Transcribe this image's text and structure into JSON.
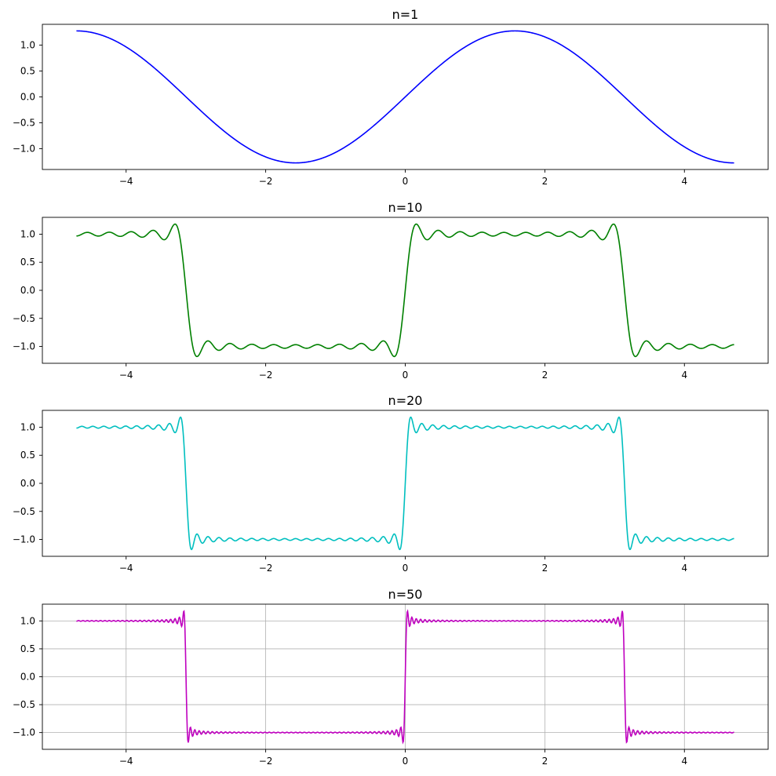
{
  "chart_data": [
    {
      "type": "line",
      "title": "n=1",
      "n_terms": 1,
      "xlim": [
        -5.2,
        5.2
      ],
      "ylim": [
        -1.4,
        1.4
      ],
      "x_ticks": [
        -4,
        -2,
        0,
        2,
        4
      ],
      "x_tick_labels": [
        "−4",
        "−2",
        "0",
        "2",
        "4"
      ],
      "y_ticks": [
        1.0,
        0.5,
        0.0,
        -0.5,
        -1.0
      ],
      "y_tick_labels": [
        "1.0",
        "0.5",
        "0.0",
        "−0.5",
        "−1.0"
      ],
      "x_range": [
        -4.712,
        4.712
      ],
      "color": "#0000ff",
      "grid": false
    },
    {
      "type": "line",
      "title": "n=10",
      "n_terms": 10,
      "xlim": [
        -5.2,
        5.2
      ],
      "ylim": [
        -1.3,
        1.3
      ],
      "x_ticks": [
        -4,
        -2,
        0,
        2,
        4
      ],
      "x_tick_labels": [
        "−4",
        "−2",
        "0",
        "2",
        "4"
      ],
      "y_ticks": [
        1.0,
        0.5,
        0.0,
        -0.5,
        -1.0
      ],
      "y_tick_labels": [
        "1.0",
        "0.5",
        "0.0",
        "−0.5",
        "−1.0"
      ],
      "x_range": [
        -4.712,
        4.712
      ],
      "color": "#008000",
      "grid": false
    },
    {
      "type": "line",
      "title": "n=20",
      "n_terms": 20,
      "xlim": [
        -5.2,
        5.2
      ],
      "ylim": [
        -1.3,
        1.3
      ],
      "x_ticks": [
        -4,
        -2,
        0,
        2,
        4
      ],
      "x_tick_labels": [
        "−4",
        "−2",
        "0",
        "2",
        "4"
      ],
      "y_ticks": [
        1.0,
        0.5,
        0.0,
        -0.5,
        -1.0
      ],
      "y_tick_labels": [
        "1.0",
        "0.5",
        "0.0",
        "−0.5",
        "−1.0"
      ],
      "x_range": [
        -4.712,
        4.712
      ],
      "color": "#00bfbf",
      "grid": false
    },
    {
      "type": "line",
      "title": "n=50",
      "n_terms": 50,
      "xlim": [
        -5.2,
        5.2
      ],
      "ylim": [
        -1.3,
        1.3
      ],
      "x_ticks": [
        -4,
        -2,
        0,
        2,
        4
      ],
      "x_tick_labels": [
        "−4",
        "−2",
        "0",
        "2",
        "4"
      ],
      "y_ticks": [
        1.0,
        0.5,
        0.0,
        -0.5,
        -1.0
      ],
      "y_tick_labels": [
        "1.0",
        "0.5",
        "0.0",
        "−0.5",
        "−1.0"
      ],
      "x_range": [
        -4.712,
        4.712
      ],
      "color": "#bf00bf",
      "grid": true
    }
  ]
}
